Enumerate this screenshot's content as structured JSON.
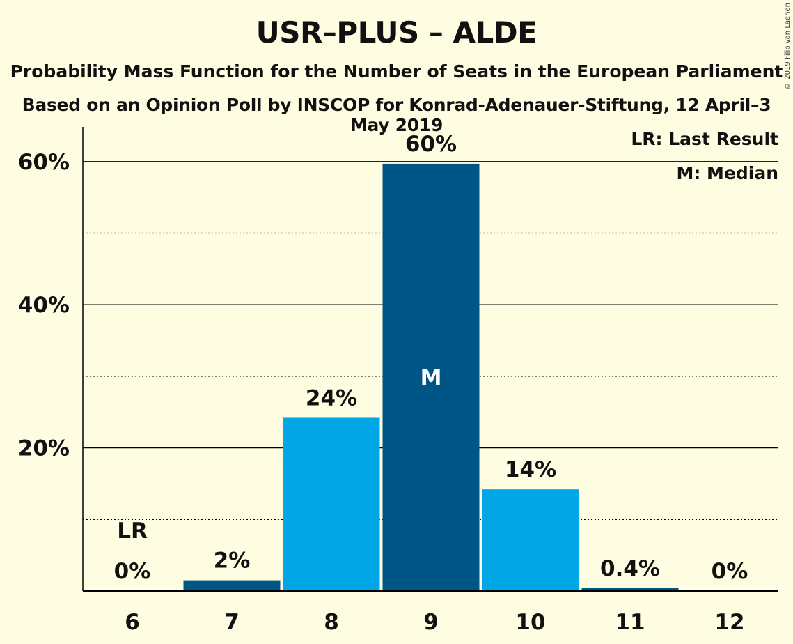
{
  "title": "USR–PLUS – ALDE",
  "subtitle": "Probability Mass Function for the Number of Seats in the European Parliament",
  "subtitle2": "Based on an Opinion Poll by INSCOP for Konrad-Adenauer-Stiftung, 12 April–3 May 2019",
  "copyright": "© 2019 Filip van Laenen",
  "legend": {
    "last_result": "LR: Last Result",
    "median": "M: Median"
  },
  "colors": {
    "background": "#fffde1",
    "dark_bar": "#005587",
    "light_bar": "#00a6e5"
  },
  "chart_data": {
    "type": "bar",
    "categories": [
      "6",
      "7",
      "8",
      "9",
      "10",
      "11",
      "12"
    ],
    "values": [
      0,
      1.5,
      24.2,
      59.7,
      14.2,
      0.4,
      0
    ],
    "value_labels": [
      "0%",
      "2%",
      "24%",
      "60%",
      "14%",
      "0.4%",
      "0%"
    ],
    "bar_colors": [
      "#005587",
      "#005587",
      "#00a6e5",
      "#005587",
      "#00a6e5",
      "#005587",
      "#005587"
    ],
    "markers": {
      "6": "LR",
      "9": "M"
    },
    "y_ticks": [
      "20%",
      "40%",
      "60%"
    ],
    "y_tick_values": [
      20,
      40,
      60
    ],
    "y_minor_gridlines": [
      10,
      30,
      50
    ],
    "ylim": [
      0,
      65
    ],
    "xlabel": "",
    "ylabel": ""
  }
}
